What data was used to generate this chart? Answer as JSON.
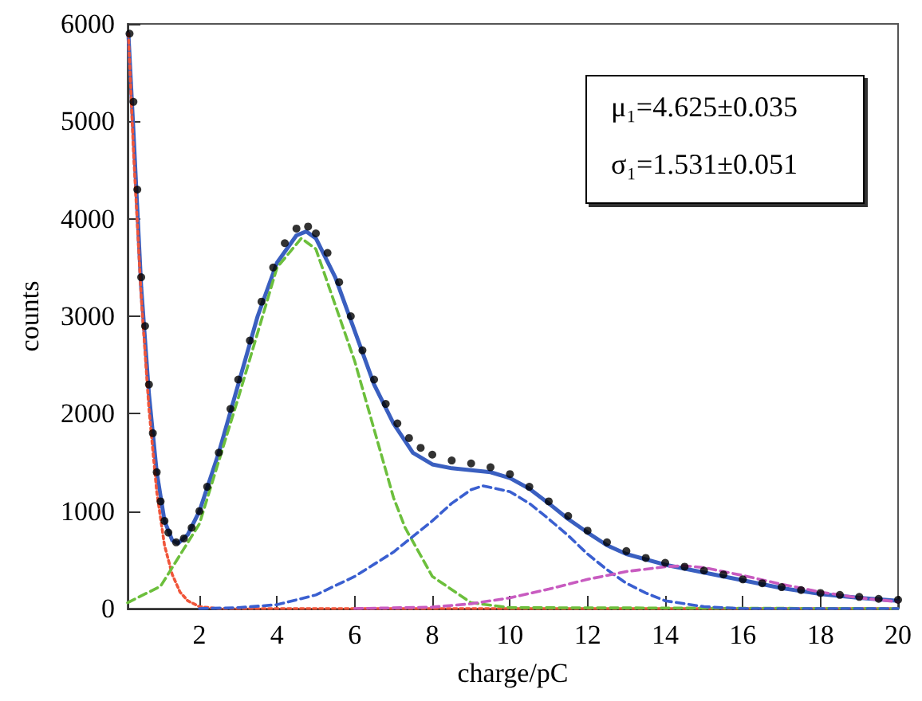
{
  "chart_data": {
    "type": "scatter",
    "xlabel": "charge/pC",
    "ylabel": "counts",
    "xlim": [
      0.15,
      20
    ],
    "xticks": [
      2,
      4,
      6,
      8,
      10,
      12,
      14,
      16,
      18,
      20
    ],
    "ylim": [
      0,
      6000
    ],
    "yticks": [
      0,
      1000,
      2000,
      3000,
      4000,
      5000,
      6000
    ],
    "grid": false,
    "annotations": [
      "μ₁=4.625±0.035",
      "σ₁=1.531±0.051"
    ],
    "series": [
      {
        "marker": "circle",
        "color": "#000000",
        "x": [
          0.2,
          0.3,
          0.4,
          0.5,
          0.6,
          0.7,
          0.8,
          0.9,
          1.0,
          1.1,
          1.2,
          1.4,
          1.6,
          1.8,
          2.0,
          2.2,
          2.5,
          2.8,
          3.0,
          3.3,
          3.6,
          3.9,
          4.2,
          4.5,
          4.8,
          5.0,
          5.3,
          5.6,
          5.9,
          6.2,
          6.5,
          6.8,
          7.1,
          7.4,
          7.7,
          8.0,
          8.5,
          9.0,
          9.5,
          10.0,
          10.5,
          11.0,
          11.5,
          12.0,
          12.5,
          13.0,
          13.5,
          14.0,
          14.5,
          15.0,
          15.5,
          16.0,
          16.5,
          17.0,
          17.5,
          18.0,
          18.5,
          19.0,
          19.5,
          20.0
        ],
        "values": [
          5900,
          5200,
          4300,
          3400,
          2900,
          2300,
          1800,
          1400,
          1100,
          900,
          780,
          680,
          720,
          830,
          1000,
          1250,
          1600,
          2050,
          2350,
          2750,
          3150,
          3500,
          3750,
          3900,
          3920,
          3850,
          3650,
          3350,
          3000,
          2650,
          2350,
          2100,
          1900,
          1750,
          1650,
          1580,
          1520,
          1490,
          1450,
          1380,
          1250,
          1100,
          950,
          800,
          680,
          590,
          520,
          470,
          430,
          390,
          350,
          300,
          260,
          220,
          190,
          160,
          140,
          120,
          100,
          90
        ]
      },
      {
        "type": "line",
        "marker": "none",
        "line_style": "solid",
        "color": "#3a5fc0",
        "x": [
          0.17,
          0.3,
          0.5,
          0.7,
          0.9,
          1.1,
          1.3,
          1.45,
          1.7,
          2.0,
          2.5,
          3.0,
          3.5,
          4.0,
          4.5,
          4.75,
          5.0,
          5.5,
          6.0,
          6.5,
          7.0,
          7.5,
          8.0,
          8.5,
          9.0,
          9.5,
          10.0,
          10.5,
          11.0,
          11.5,
          12.0,
          12.5,
          13.0,
          14.0,
          15.0,
          16.0,
          17.0,
          18.0,
          19.0,
          20.0
        ],
        "values": [
          5900,
          4900,
          3300,
          2200,
          1400,
          900,
          700,
          670,
          760,
          1000,
          1600,
          2300,
          3000,
          3550,
          3830,
          3870,
          3800,
          3400,
          2850,
          2300,
          1900,
          1600,
          1480,
          1440,
          1420,
          1400,
          1340,
          1230,
          1080,
          920,
          780,
          650,
          560,
          450,
          370,
          290,
          210,
          150,
          110,
          80
        ]
      },
      {
        "type": "line",
        "marker": "none",
        "line_style": "dotted",
        "color": "#f0553a",
        "x": [
          0.17,
          0.3,
          0.5,
          0.7,
          0.9,
          1.1,
          1.3,
          1.5,
          1.7,
          2.0,
          2.5,
          20.0
        ],
        "values": [
          5900,
          4700,
          3200,
          2050,
          1200,
          650,
          350,
          170,
          80,
          20,
          0,
          0
        ]
      },
      {
        "type": "line",
        "marker": "none",
        "line_style": "dashed",
        "color": "#6cbf3c",
        "x": [
          0.15,
          1,
          2,
          3,
          4,
          4.625,
          5,
          6,
          7,
          7.3,
          8,
          9,
          10,
          20
        ],
        "values": [
          60,
          230,
          870,
          2160,
          3500,
          3800,
          3690,
          2540,
          1140,
          830,
          330,
          60,
          10,
          0
        ]
      },
      {
        "type": "line",
        "marker": "none",
        "line_style": "dashed",
        "color": "#3a5fd0",
        "x": [
          2,
          3,
          4,
          5,
          6,
          7,
          8,
          8.5,
          9,
          9.3,
          10,
          10.5,
          11,
          11.5,
          12,
          12.5,
          13,
          13.5,
          14,
          15,
          16,
          20
        ],
        "values": [
          0,
          10,
          40,
          140,
          330,
          580,
          900,
          1080,
          1220,
          1260,
          1200,
          1080,
          920,
          750,
          560,
          400,
          260,
          160,
          80,
          20,
          0,
          0
        ]
      },
      {
        "type": "line",
        "marker": "none",
        "line_style": "dashed",
        "color": "#c85bc0",
        "x": [
          6,
          8,
          9,
          10,
          11,
          12,
          13,
          14,
          14.5,
          15,
          16,
          17,
          18,
          19,
          20
        ],
        "values": [
          0,
          15,
          50,
          110,
          200,
          300,
          380,
          430,
          440,
          420,
          340,
          250,
          170,
          110,
          70
        ]
      }
    ]
  }
}
